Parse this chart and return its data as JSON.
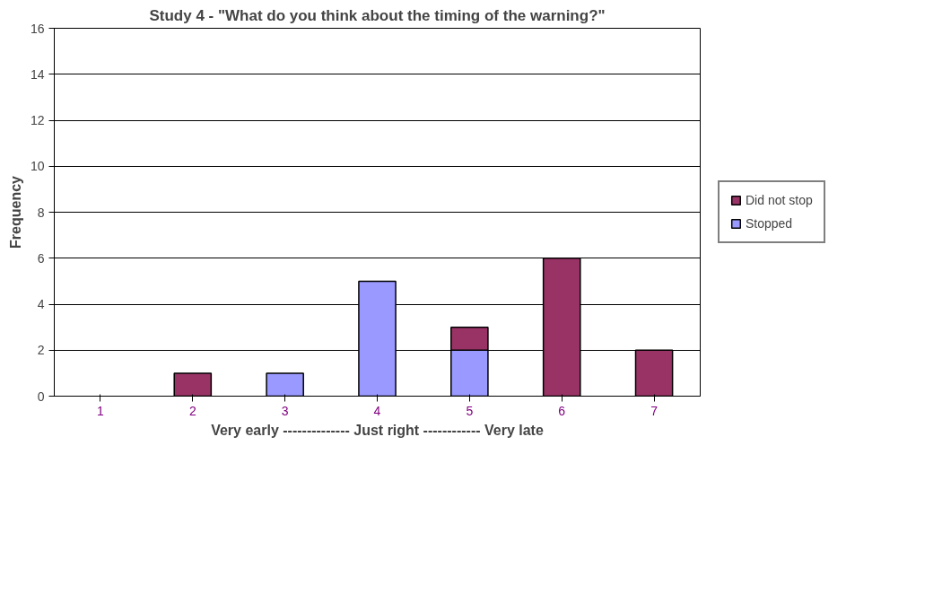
{
  "chart_data": {
    "type": "bar",
    "title": "Study 4 - \"What do you think about the timing of the warning?\"",
    "xlabel": "Very early -------------- Just right ------------ Very late",
    "ylabel": "Frequency",
    "categories": [
      "1",
      "2",
      "3",
      "4",
      "5",
      "6",
      "7"
    ],
    "stacked": true,
    "series": [
      {
        "name": "Stopped",
        "color": "#9999ff",
        "values": [
          0,
          0,
          1,
          5,
          2,
          0,
          0
        ]
      },
      {
        "name": "Did not stop",
        "color": "#993366",
        "values": [
          0,
          1,
          0,
          0,
          1,
          6,
          2
        ]
      }
    ],
    "ylim": [
      0,
      16
    ],
    "yticks": [
      0,
      2,
      4,
      6,
      8,
      10,
      12,
      14,
      16
    ],
    "grid": "y",
    "legend": "right"
  }
}
